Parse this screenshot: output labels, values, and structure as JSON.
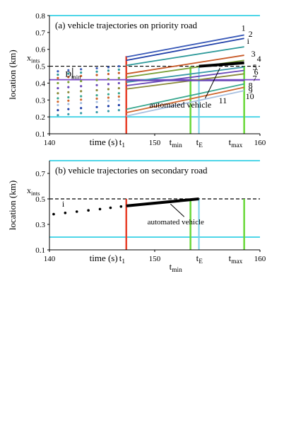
{
  "chart_data": [
    {
      "type": "line",
      "title": "(a) vehicle trajectories on priority road",
      "xlabel": "time (s)",
      "ylabel": "location (km)",
      "xlim": [
        140,
        160
      ],
      "ylim": [
        0.1,
        0.8
      ],
      "x_tick_labels": [
        "140",
        "150",
        "160"
      ],
      "y_tick_labels": [
        "0.1",
        "0.2",
        "0.3",
        "0.4",
        "0.5",
        "0.6",
        "0.7",
        "0.8"
      ],
      "grid": false,
      "annotations": {
        "xints": "x",
        "xints_sub": "ints",
        "dmin": "D",
        "dmin_sub": "min",
        "t1": "t",
        "t1_sub": "1",
        "tmin": "t",
        "tmin_sub": "min",
        "tE": "t",
        "tE_sub": "E",
        "tmax": "t",
        "tmax_sub": "max",
        "automated": "automated vehicle"
      },
      "reference_lines": {
        "x_ints": 0.5,
        "boundary_upper": 0.8,
        "boundary_lower": 0.2,
        "d_min_level": 0.42,
        "t1": 147.3,
        "t_min": 153.4,
        "t_E": 154.2,
        "t_max": 158.5
      },
      "series": [
        {
          "name": "1",
          "color": "#3a5ab8",
          "x": [
            147.3,
            158.5
          ],
          "y": [
            0.555,
            0.685
          ]
        },
        {
          "name": "2",
          "color": "#2040a8",
          "x": [
            147.3,
            158.5
          ],
          "y": [
            0.535,
            0.665
          ]
        },
        {
          "name": "i",
          "color": "#2e9a9a",
          "x": [
            147.3,
            158.5
          ],
          "y": [
            0.505,
            0.615
          ]
        },
        {
          "name": "3",
          "color": "#c85a28",
          "x": [
            147.3,
            158.5
          ],
          "y": [
            0.455,
            0.565
          ]
        },
        {
          "name": "4",
          "color": "#7aa038",
          "x": [
            147.3,
            158.5
          ],
          "y": [
            0.435,
            0.535
          ]
        },
        {
          "name": "5",
          "color": "#3a9aa8",
          "x": [
            147.3,
            158.5
          ],
          "y": [
            0.405,
            0.495
          ]
        },
        {
          "name": "6",
          "color": "#6a48b8",
          "x": [
            147.3,
            158.5
          ],
          "y": [
            0.385,
            0.475
          ]
        },
        {
          "name": "7",
          "color": "#8a8a3a",
          "x": [
            147.3,
            158.5
          ],
          "y": [
            0.365,
            0.455
          ]
        },
        {
          "name": "8",
          "color": "#3aa890",
          "x": [
            147.3,
            158.5
          ],
          "y": [
            0.245,
            0.395
          ]
        },
        {
          "name": "9",
          "color": "#d06830",
          "x": [
            147.3,
            158.5
          ],
          "y": [
            0.225,
            0.375
          ]
        },
        {
          "name": "10",
          "color": "#a8c0e0",
          "x": [
            147.3,
            158.5
          ],
          "y": [
            0.205,
            0.355
          ]
        },
        {
          "name": "11",
          "color": "#6a48b8",
          "x": [
            147.3,
            158.5
          ],
          "y": [
            0.415,
            0.415
          ]
        },
        {
          "name": "automated vehicle",
          "color": "#000000",
          "x": [
            154.2,
            158.5
          ],
          "y": [
            0.5,
            0.52
          ]
        }
      ],
      "pre_t1_scatter_times": [
        140.8,
        141.8,
        143.0,
        144.5,
        145.6,
        146.6
      ],
      "pre_t1_scatter_locations": [
        0.47,
        0.45,
        0.43,
        0.4,
        0.37,
        0.34,
        0.31,
        0.29,
        0.27,
        0.24,
        0.21
      ]
    },
    {
      "type": "line",
      "title": "(b) vehicle trajectories on secondary road",
      "xlabel": "time (s)",
      "ylabel": "location (km)",
      "xlim": [
        140,
        160
      ],
      "ylim": [
        0.1,
        0.8
      ],
      "x_tick_labels": [
        "140",
        "150",
        "160"
      ],
      "y_tick_labels": [
        "0.1",
        "0.3",
        "0.5",
        "0.7"
      ],
      "grid": false,
      "annotations": {
        "xints": "x",
        "xints_sub": "ints",
        "i_label": "i",
        "t1": "t",
        "t1_sub": "1",
        "tmin": "t",
        "tmin_sub": "min",
        "tE": "t",
        "tE_sub": "E",
        "tmax": "t",
        "tmax_sub": "max",
        "automated": "automated vehicle"
      },
      "reference_lines": {
        "x_ints": 0.5,
        "boundary_upper": 0.8,
        "boundary_lower": 0.2,
        "t1": 147.3,
        "t_min": 153.4,
        "t_E": 154.2,
        "t_max": 158.5
      },
      "scatter": {
        "x": [
          140.4,
          141.5,
          142.6,
          143.7,
          144.8,
          145.8,
          146.8
        ],
        "y": [
          0.38,
          0.39,
          0.4,
          0.41,
          0.42,
          0.43,
          0.44
        ]
      },
      "series": [
        {
          "name": "automated vehicle",
          "color": "#000000",
          "x": [
            147.3,
            154.2
          ],
          "y": [
            0.445,
            0.5
          ]
        }
      ]
    }
  ]
}
